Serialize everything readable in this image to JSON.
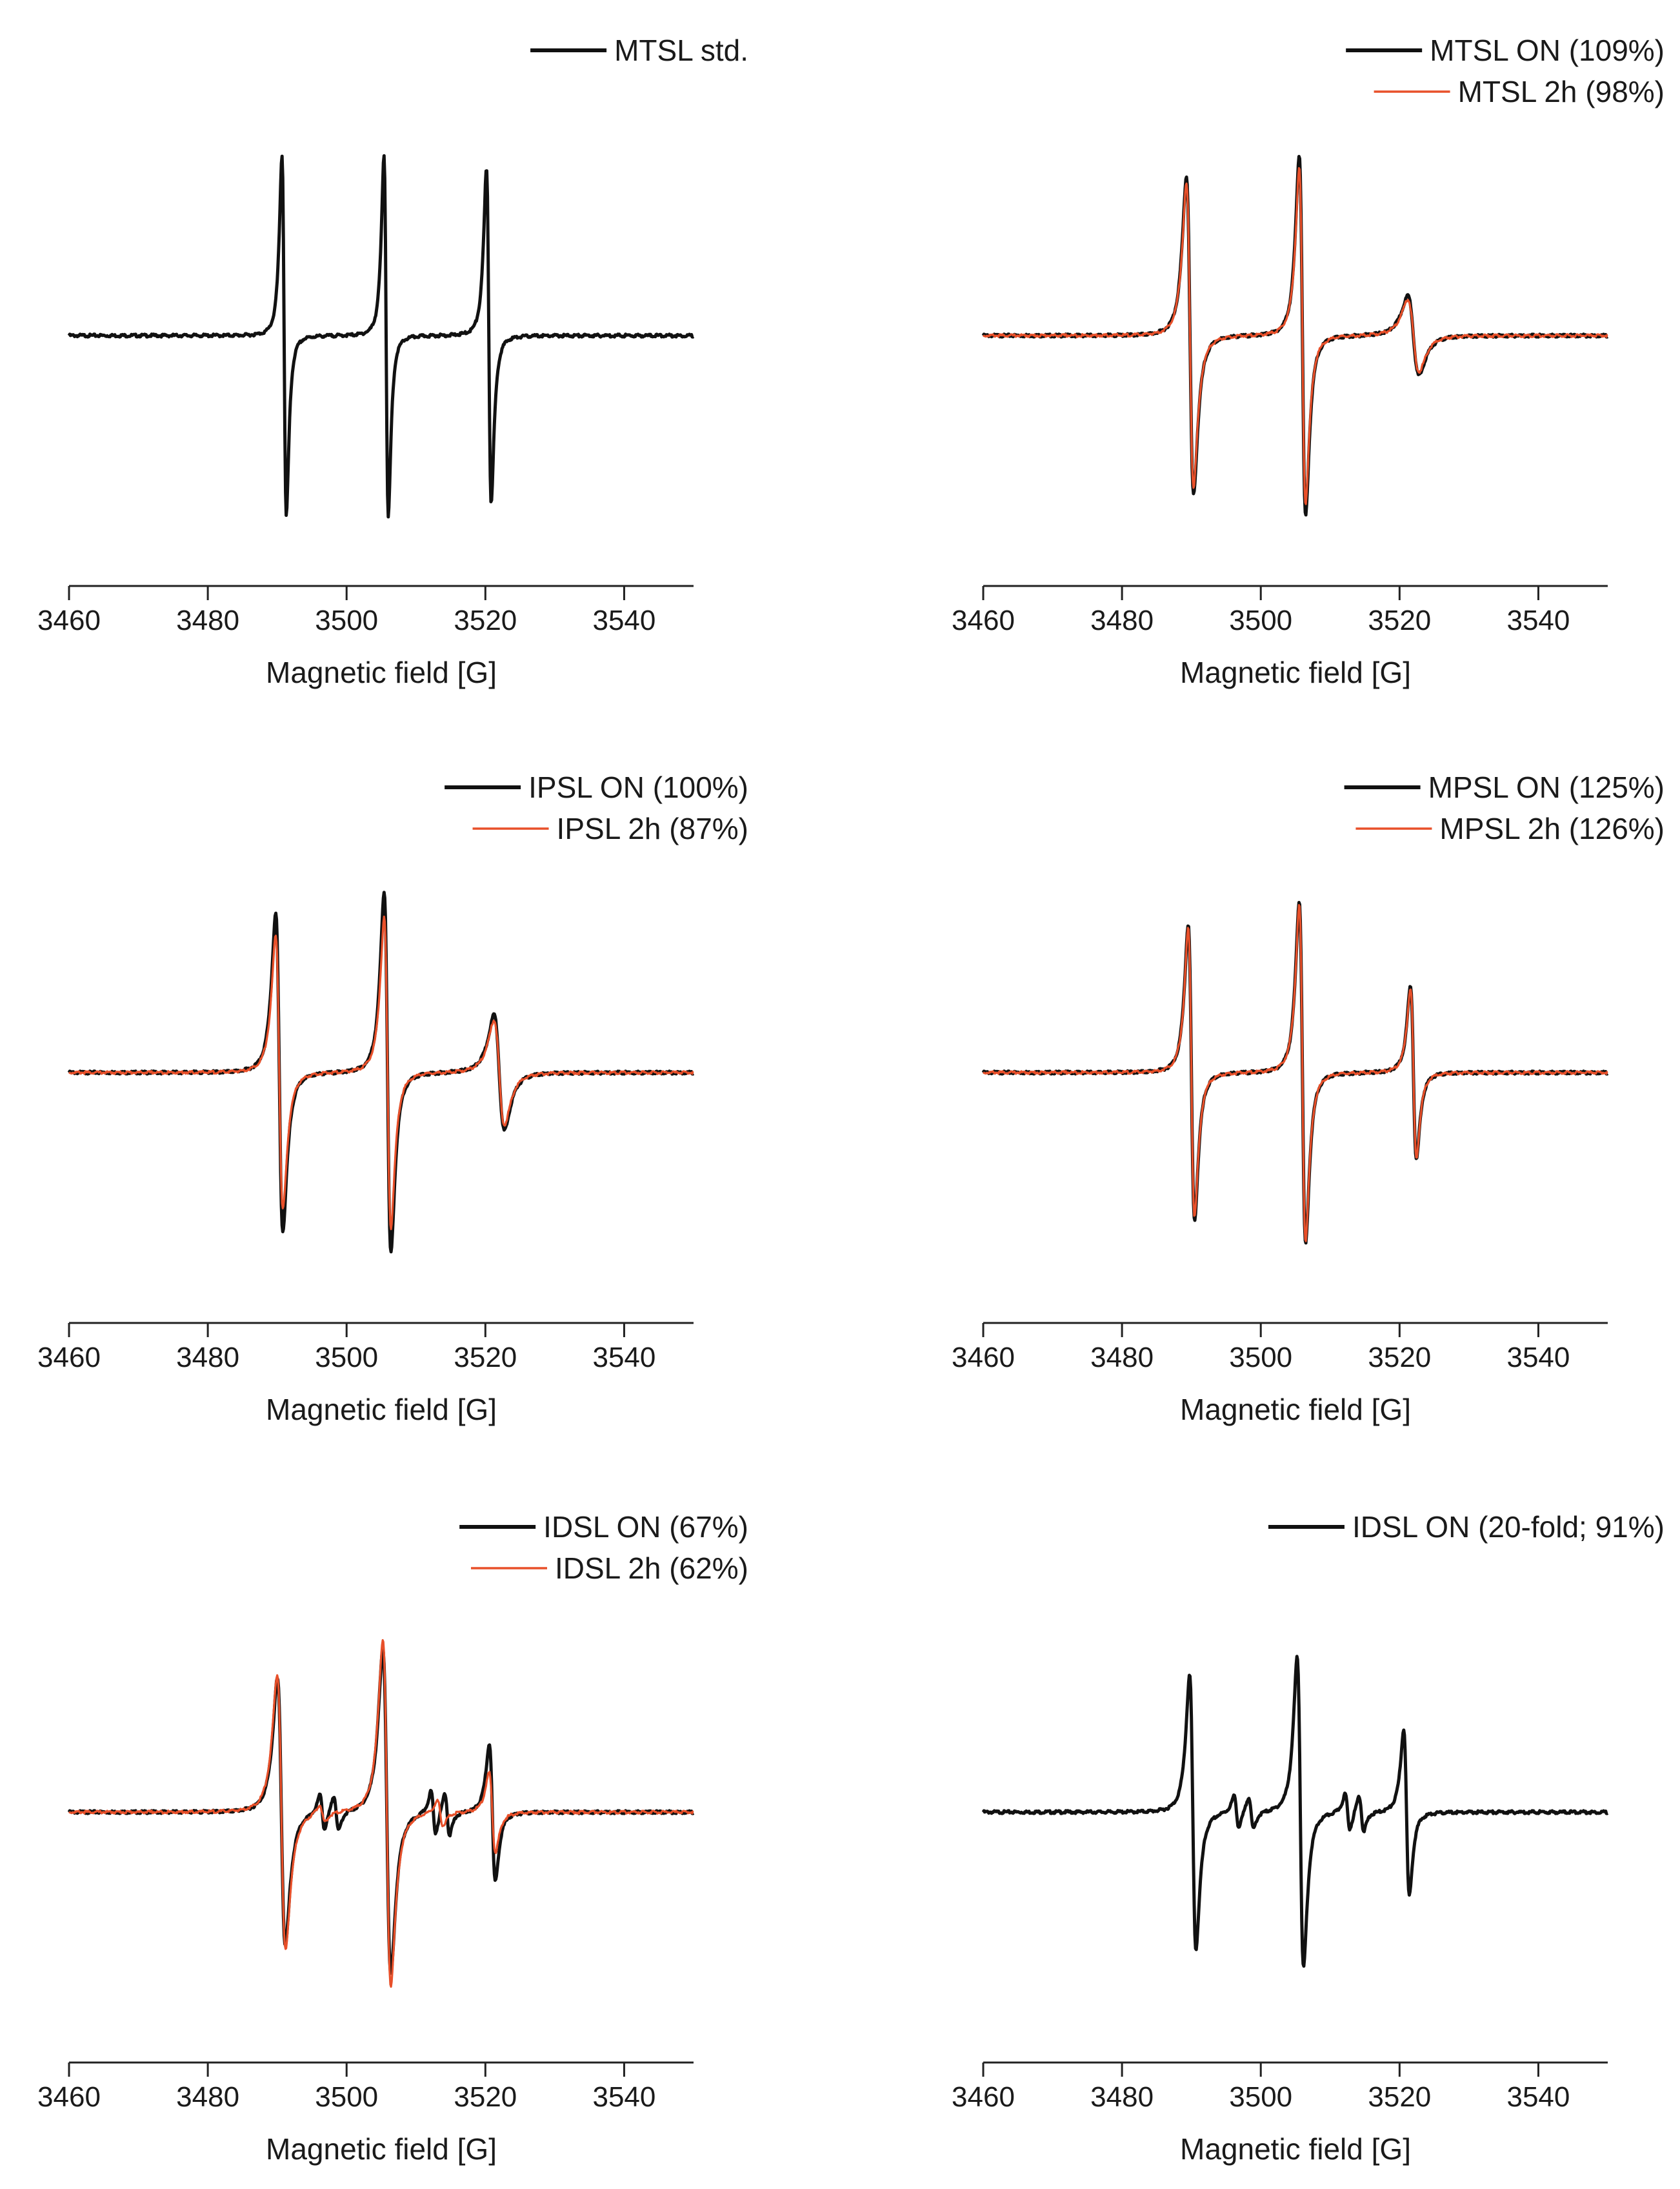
{
  "figure": {
    "panels": [
      {
        "id": "mtsl-std",
        "legend": [
          {
            "name": "MTSL std.",
            "color": "#111111"
          }
        ]
      },
      {
        "id": "mtsl",
        "legend": [
          {
            "name": "MTSL ON (109%)",
            "color": "#111111"
          },
          {
            "name": "MTSL 2h (98%)",
            "color": "#e8502a"
          }
        ]
      },
      {
        "id": "ipsl",
        "legend": [
          {
            "name": "IPSL ON (100%)",
            "color": "#111111"
          },
          {
            "name": "IPSL 2h (87%)",
            "color": "#e8502a"
          }
        ]
      },
      {
        "id": "mpsl",
        "legend": [
          {
            "name": "MPSL ON (125%)",
            "color": "#111111"
          },
          {
            "name": "MPSL 2h (126%)",
            "color": "#e8502a"
          }
        ]
      },
      {
        "id": "idsl",
        "legend": [
          {
            "name": "IDSL ON (67%)",
            "color": "#111111"
          },
          {
            "name": "IDSL 2h (62%)",
            "color": "#e8502a"
          }
        ]
      },
      {
        "id": "idsl-20fold",
        "legend": [
          {
            "name": "IDSL ON (20-fold; 91%)",
            "color": "#111111"
          }
        ]
      }
    ]
  },
  "chart_data": [
    {
      "type": "line",
      "title": "",
      "xlabel": "Magnetic field [G]",
      "ylabel": "",
      "xlim": [
        3460,
        3550
      ],
      "xticks": [
        3460,
        3480,
        3500,
        3520,
        3540
      ],
      "ylim": [
        -1.0,
        1.05
      ],
      "grid": false,
      "legend_position": "top-right",
      "series": [
        {
          "name": "MTSL std.",
          "color": "#111111",
          "lines": [
            {
              "center": 3491.0,
              "amp": 1.0,
              "width": 0.55
            },
            {
              "center": 3505.7,
              "amp": 1.0,
              "width": 0.55
            },
            {
              "center": 3520.5,
              "amp": 0.93,
              "width": 0.6
            }
          ]
        }
      ]
    },
    {
      "type": "line",
      "title": "",
      "xlabel": "Magnetic field [G]",
      "ylabel": "",
      "xlim": [
        3460,
        3550
      ],
      "xticks": [
        3460,
        3480,
        3500,
        3520,
        3540
      ],
      "ylim": [
        -1.0,
        1.05
      ],
      "grid": false,
      "legend_position": "top-right",
      "series": [
        {
          "name": "MTSL ON (109%)",
          "color": "#111111",
          "lines": [
            {
              "center": 3489.8,
              "amp": 0.88,
              "width": 0.9
            },
            {
              "center": 3506.0,
              "amp": 1.0,
              "width": 0.8
            },
            {
              "center": 3522.0,
              "amp": 0.22,
              "width": 1.4
            }
          ]
        },
        {
          "name": "MTSL 2h (98%)",
          "color": "#e8502a",
          "lines": [
            {
              "center": 3489.8,
              "amp": 0.84,
              "width": 0.9
            },
            {
              "center": 3506.0,
              "amp": 0.93,
              "width": 0.8
            },
            {
              "center": 3522.0,
              "amp": 0.2,
              "width": 1.4
            }
          ]
        }
      ]
    },
    {
      "type": "line",
      "title": "",
      "xlabel": "Magnetic field [G]",
      "ylabel": "",
      "xlim": [
        3460,
        3550
      ],
      "xticks": [
        3460,
        3480,
        3500,
        3520,
        3540
      ],
      "ylim": [
        -1.0,
        1.05
      ],
      "grid": false,
      "legend_position": "top-right",
      "series": [
        {
          "name": "IPSL ON (100%)",
          "color": "#111111",
          "lines": [
            {
              "center": 3490.3,
              "amp": 0.88,
              "width": 0.9
            },
            {
              "center": 3505.9,
              "amp": 1.0,
              "width": 0.85
            },
            {
              "center": 3522.0,
              "amp": 0.32,
              "width": 1.3
            }
          ]
        },
        {
          "name": "IPSL 2h (87%)",
          "color": "#e8502a",
          "lines": [
            {
              "center": 3490.3,
              "amp": 0.76,
              "width": 0.9
            },
            {
              "center": 3505.9,
              "amp": 0.86,
              "width": 0.85
            },
            {
              "center": 3522.0,
              "amp": 0.29,
              "width": 1.3
            }
          ]
        }
      ]
    },
    {
      "type": "line",
      "title": "",
      "xlabel": "Magnetic field [G]",
      "ylabel": "",
      "xlim": [
        3460,
        3550
      ],
      "xticks": [
        3460,
        3480,
        3500,
        3520,
        3540
      ],
      "ylim": [
        -1.0,
        1.05
      ],
      "grid": false,
      "legend_position": "top-right",
      "series": [
        {
          "name": "MPSL ON (125%)",
          "color": "#111111",
          "lines": [
            {
              "center": 3490.0,
              "amp": 0.82,
              "width": 0.8
            },
            {
              "center": 3506.0,
              "amp": 0.95,
              "width": 0.8
            },
            {
              "center": 3522.0,
              "amp": 0.48,
              "width": 0.75
            }
          ]
        },
        {
          "name": "MPSL 2h (126%)",
          "color": "#e8502a",
          "lines": [
            {
              "center": 3490.0,
              "amp": 0.8,
              "width": 0.8
            },
            {
              "center": 3506.0,
              "amp": 0.93,
              "width": 0.8
            },
            {
              "center": 3522.0,
              "amp": 0.47,
              "width": 0.75
            }
          ]
        }
      ]
    },
    {
      "type": "line",
      "title": "",
      "xlabel": "Magnetic field [G]",
      "ylabel": "",
      "xlim": [
        3460,
        3550
      ],
      "xticks": [
        3460,
        3480,
        3500,
        3520,
        3540
      ],
      "ylim": [
        -1.0,
        1.05
      ],
      "grid": false,
      "legend_position": "top-right",
      "series": [
        {
          "name": "IDSL ON (67%)",
          "color": "#111111",
          "lines": [
            {
              "center": 3490.6,
              "amp": 0.74,
              "width": 1.0
            },
            {
              "center": 3505.8,
              "amp": 0.9,
              "width": 1.0
            },
            {
              "center": 3521.0,
              "amp": 0.38,
              "width": 0.75
            },
            {
              "center": 3496.5,
              "amp": 0.1,
              "width": 0.6
            },
            {
              "center": 3498.5,
              "amp": 0.1,
              "width": 0.6
            },
            {
              "center": 3512.5,
              "amp": 0.12,
              "width": 0.6
            },
            {
              "center": 3514.5,
              "amp": 0.12,
              "width": 0.6
            }
          ]
        },
        {
          "name": "IDSL 2h (62%)",
          "color": "#e8502a",
          "lines": [
            {
              "center": 3490.6,
              "amp": 0.76,
              "width": 1.05
            },
            {
              "center": 3505.8,
              "amp": 0.96,
              "width": 1.0
            },
            {
              "center": 3521.0,
              "amp": 0.22,
              "width": 0.8
            },
            {
              "center": 3496.5,
              "amp": 0.05,
              "width": 0.7
            },
            {
              "center": 3513.5,
              "amp": 0.07,
              "width": 0.7
            }
          ]
        }
      ]
    },
    {
      "type": "line",
      "title": "",
      "xlabel": "Magnetic field [G]",
      "ylabel": "",
      "xlim": [
        3460,
        3550
      ],
      "xticks": [
        3460,
        3480,
        3500,
        3520,
        3540
      ],
      "ylim": [
        -1.0,
        1.05
      ],
      "grid": false,
      "legend_position": "top-right",
      "series": [
        {
          "name": "IDSL ON (20-fold; 91%)",
          "color": "#111111",
          "lines": [
            {
              "center": 3490.2,
              "amp": 0.76,
              "width": 0.8
            },
            {
              "center": 3505.7,
              "amp": 0.86,
              "width": 0.8
            },
            {
              "center": 3521.0,
              "amp": 0.46,
              "width": 0.7
            },
            {
              "center": 3496.5,
              "amp": 0.09,
              "width": 0.6
            },
            {
              "center": 3498.6,
              "amp": 0.09,
              "width": 0.6
            },
            {
              "center": 3512.5,
              "amp": 0.1,
              "width": 0.6
            },
            {
              "center": 3514.5,
              "amp": 0.1,
              "width": 0.6
            }
          ]
        }
      ]
    }
  ]
}
